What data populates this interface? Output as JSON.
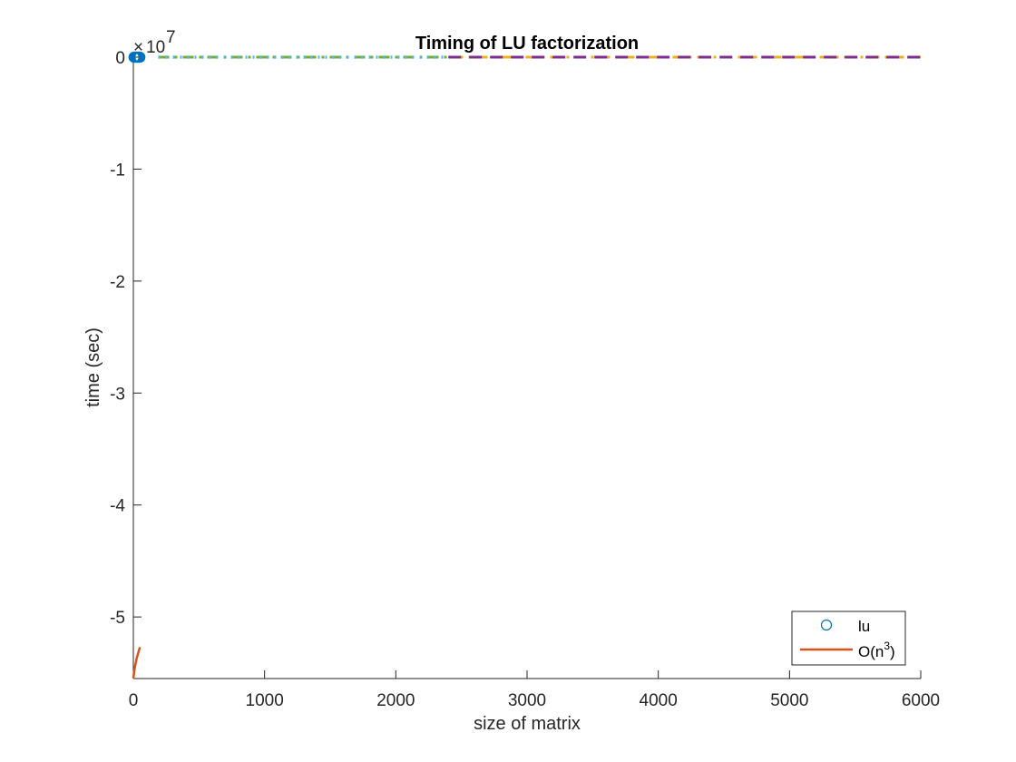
{
  "chart_data": {
    "type": "line",
    "title": "Timing of LU factorization",
    "xlabel": "size of matrix",
    "ylabel": "time (sec)",
    "y_exponent_base": "10",
    "y_exponent_power": "7",
    "xlim": [
      0,
      6000
    ],
    "ylim": [
      -5.55,
      0
    ],
    "x_ticks": [
      0,
      1000,
      2000,
      3000,
      4000,
      5000,
      6000
    ],
    "x_tick_labels": [
      "0",
      "1000",
      "2000",
      "3000",
      "4000",
      "5000",
      "6000"
    ],
    "y_ticks": [
      0,
      -1,
      -2,
      -3,
      -4,
      -5
    ],
    "y_tick_labels": [
      "0",
      "-1",
      "-2",
      "-3",
      "-4",
      "-5"
    ],
    "grid": false,
    "legend_position": "bottom-right",
    "legend": [
      {
        "label": "lu",
        "marker": "circle",
        "color": "#0072BD"
      },
      {
        "label_main": "O(n",
        "label_sup": "3",
        "label_end": ")",
        "line": "solid",
        "color": "#D95319"
      }
    ],
    "series": [
      {
        "name": "lu",
        "style": "circle-markers",
        "color": "#0072BD",
        "x": [
          5,
          10,
          15,
          20,
          25,
          30,
          35,
          40,
          45,
          50
        ],
        "y": [
          0,
          0,
          0,
          0,
          0,
          0,
          0,
          0,
          0,
          0
        ]
      },
      {
        "name": "O(n3)",
        "style": "solid",
        "color": "#D95319",
        "x": [
          0,
          5,
          10,
          15,
          20,
          25,
          30,
          35,
          40,
          45,
          50
        ],
        "y": [
          -5.55,
          -5.5,
          -5.46,
          -5.43,
          -5.4,
          -5.37,
          -5.35,
          -5.33,
          -5.31,
          -5.29,
          -5.27
        ]
      },
      {
        "style": "dash-dot",
        "color": "#EDB120",
        "x": [
          190,
          6000
        ],
        "y": [
          0,
          0
        ]
      },
      {
        "style": "dash-dot",
        "color": "#77AC30",
        "x": [
          190,
          2400
        ],
        "y": [
          0,
          0
        ]
      },
      {
        "style": "dotted",
        "color": "#4DBEEE",
        "x": [
          190,
          2400
        ],
        "y": [
          0,
          0
        ]
      },
      {
        "style": "dashed",
        "color": "#7E2F8E",
        "x": [
          2400,
          6000
        ],
        "y": [
          0,
          0
        ]
      }
    ]
  }
}
